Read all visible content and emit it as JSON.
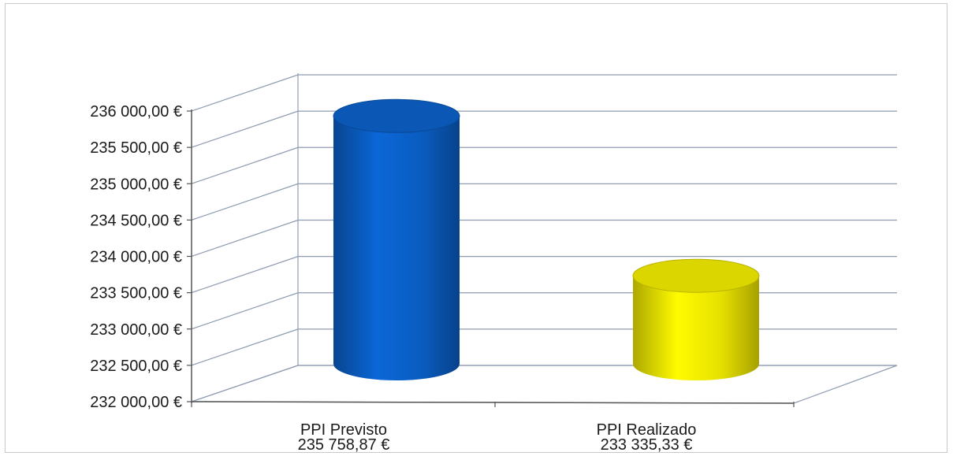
{
  "chart_data": {
    "type": "bar",
    "style": "3d-cylinder",
    "categories": [
      "PPI Previsto",
      "PPI Realizado"
    ],
    "category_values_text": [
      "235 758,87 €",
      "233 335,33 €"
    ],
    "values": [
      235758.87,
      233335.33
    ],
    "bar_colors": [
      "#0a5cc0",
      "#e6e000"
    ],
    "yticks": [
      "232 000,00 €",
      "232 500,00 €",
      "233 000,00 €",
      "233 500,00 €",
      "234 000,00 €",
      "234 500,00 €",
      "235 000,00 €",
      "235 500,00 €",
      "236 000,00 €"
    ],
    "ylim": [
      232000,
      236000
    ],
    "grid": true,
    "legend": "none",
    "title": "",
    "xlabel": "",
    "ylabel": ""
  }
}
